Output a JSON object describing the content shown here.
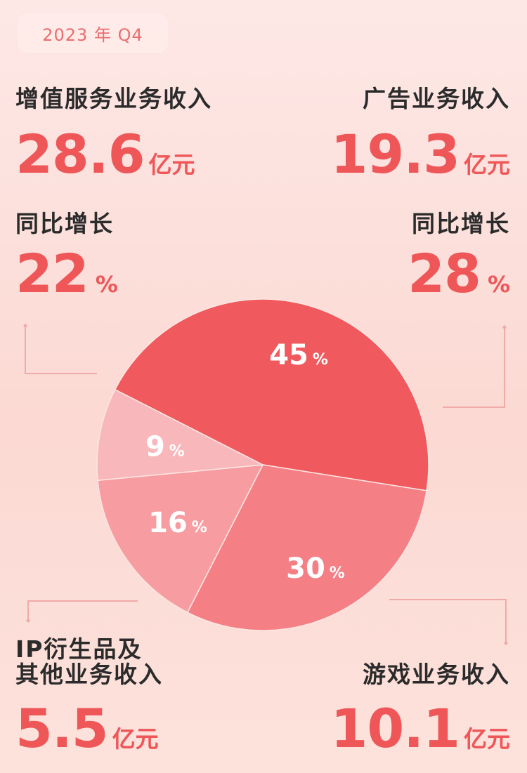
{
  "period": "2023 年 Q4",
  "segments": [
    {
      "label": "增值服务业务收入",
      "amount": "28.6",
      "unit": "亿元",
      "growth_label": "同比增长",
      "growth": "22",
      "growth_unit": "%"
    },
    {
      "label": "广告业务收入",
      "amount": "19.3",
      "unit": "亿元",
      "growth_label": "同比增长",
      "growth": "28",
      "growth_unit": "%"
    },
    {
      "label_line1": "IP衍生品及",
      "label_line2": "其他业务收入",
      "amount": "5.5",
      "unit": "亿元"
    },
    {
      "label": "游戏业务收入",
      "amount": "10.1",
      "unit": "亿元"
    }
  ],
  "chart_data": {
    "type": "pie",
    "categories": [
      "增值服务业务收入",
      "广告业务收入",
      "游戏业务收入",
      "IP衍生品及其他业务收入"
    ],
    "values": [
      45,
      30,
      16,
      9
    ],
    "value_labels": [
      "45",
      "30",
      "16",
      "9"
    ],
    "value_unit": "%",
    "colors": [
      "#f0595d",
      "#f47f85",
      "#f79da2",
      "#f8b7bb"
    ]
  },
  "colors": {
    "accent": "#ee5658",
    "text": "#2b2b2b",
    "badge_text": "#ea6e6e",
    "connector": "#f0aaa8"
  }
}
